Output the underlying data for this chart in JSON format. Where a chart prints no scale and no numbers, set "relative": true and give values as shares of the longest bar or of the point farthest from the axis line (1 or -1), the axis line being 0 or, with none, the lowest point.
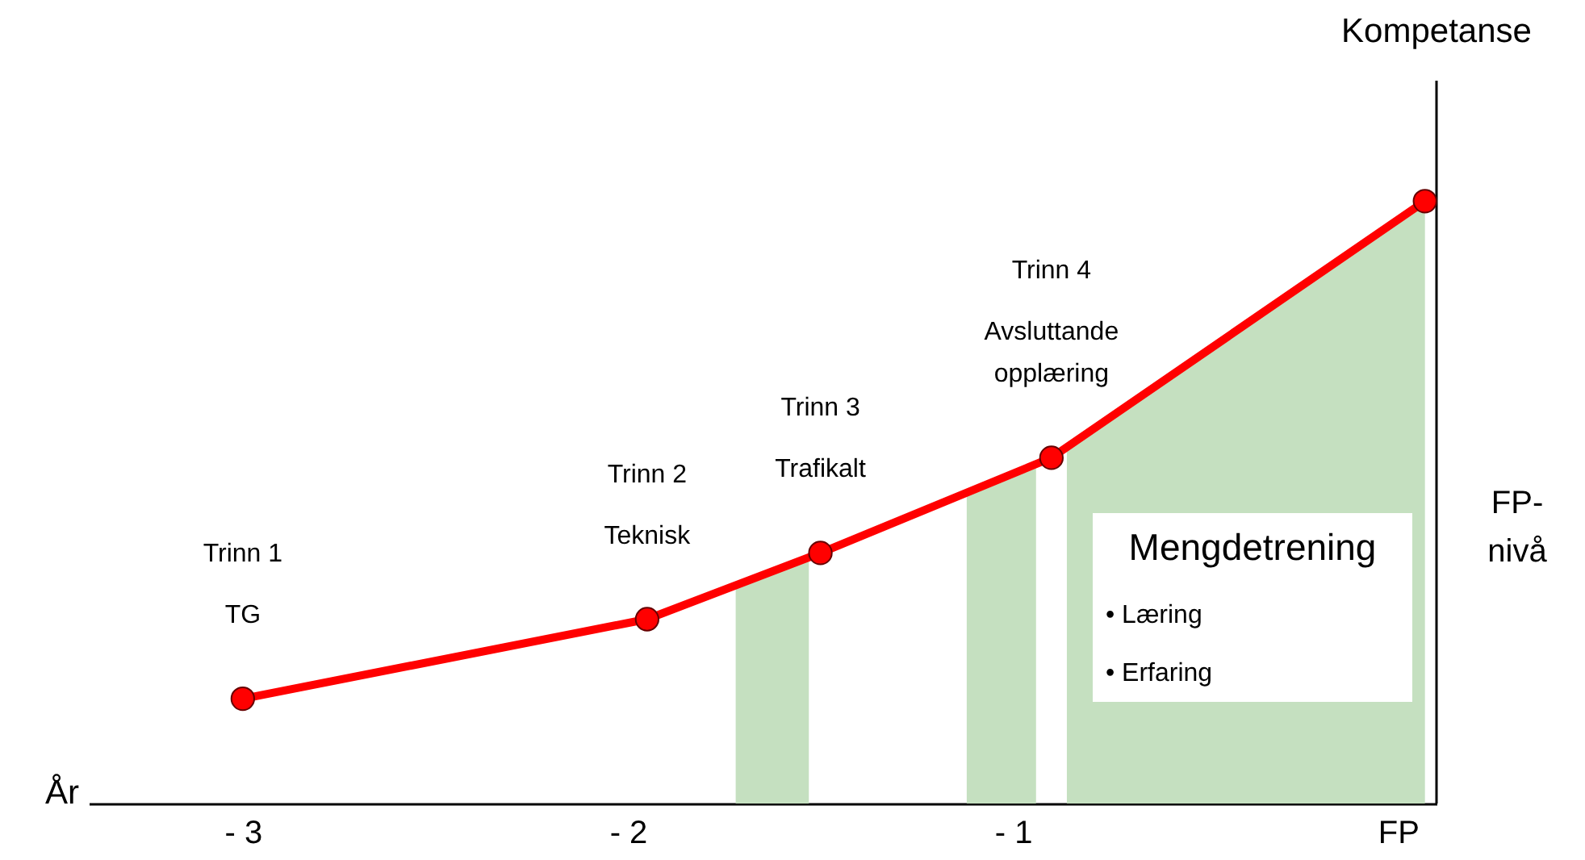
{
  "chart_data": {
    "type": "line",
    "relative": true,
    "xlabel": "År",
    "ylabel": "Kompetanse",
    "marker": "circle",
    "xlim": [
      -3.4,
      0.1
    ],
    "xticks": [
      {
        "value": -3,
        "label": "- 3"
      },
      {
        "value": -2,
        "label": "- 2"
      },
      {
        "value": -1,
        "label": "- 1"
      },
      {
        "value": 0,
        "label": "FP"
      }
    ],
    "x": [
      -3,
      -1.95,
      -1.5,
      -0.9,
      0.07
    ],
    "series": [
      {
        "color": "#ff0000",
        "values": [
          0.174,
          0.306,
          0.416,
          0.574,
          1
        ]
      },
      {
        "type": "area",
        "color": "#c5e0c0",
        "marker": "none",
        "x": [
          -0.86,
          0.07
        ],
        "values": [
          0.592,
          1
        ]
      }
    ],
    "bands": [
      {
        "axis": "x",
        "from": -1.72,
        "to": -1.53,
        "color": "#c5e0c0"
      },
      {
        "axis": "x",
        "from": -1.12,
        "to": -0.94,
        "color": "#c5e0c0"
      }
    ],
    "annotations": [
      "Trinn 1",
      "TG",
      "Trinn 2",
      "Teknisk",
      "Trinn 3",
      "Trafikalt",
      "Trinn 4",
      "Avsluttande opplæring",
      "Mengdetrening",
      "• Læring",
      "• Erfaring",
      "FP- nivå"
    ]
  }
}
